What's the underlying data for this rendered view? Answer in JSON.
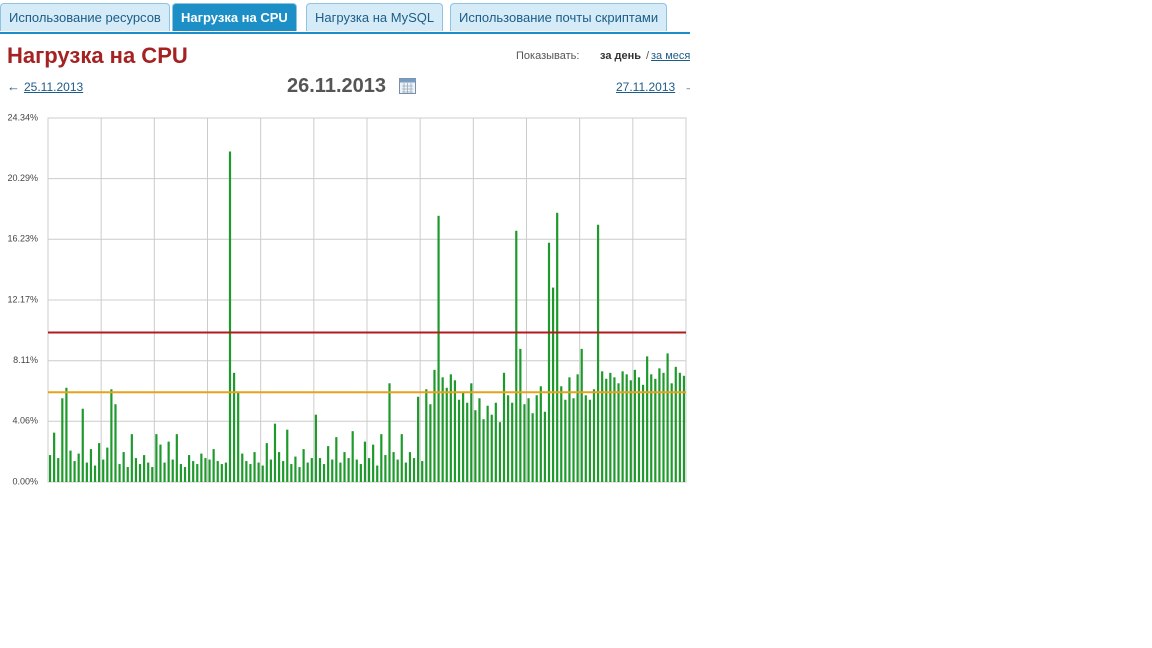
{
  "tabs": [
    "Использование ресурсов",
    "Нагрузка на CPU",
    "Нагрузка на MySQL",
    "Использование почты скриптами"
  ],
  "active_tab": 1,
  "header": {
    "title": "Нагрузка на CPU",
    "show_label": "Показывать:",
    "period_day": "за день",
    "separator": "/",
    "period_month": "за меся"
  },
  "nav": {
    "prev_arrow": "←",
    "prev_date": "25.11.2013",
    "current_date": "26.11.2013",
    "next_date": "27.11.2013",
    "next_arrow": "→"
  },
  "chart_data": {
    "type": "bar",
    "color": "#1e9a2c",
    "values": [
      1.8,
      3.3,
      1.6,
      5.6,
      6.3,
      2.1,
      1.4,
      1.9,
      4.9,
      1.3,
      2.2,
      1.1,
      2.6,
      1.5,
      2.3,
      6.2,
      5.2,
      1.2,
      2.0,
      1.0,
      3.2,
      1.6,
      1.2,
      1.8,
      1.3,
      1.0,
      3.2,
      2.5,
      1.3,
      2.7,
      1.5,
      3.2,
      1.2,
      1.0,
      1.8,
      1.4,
      1.2,
      1.9,
      1.6,
      1.5,
      2.2,
      1.4,
      1.2,
      1.3,
      22.1,
      7.3,
      6.0,
      1.9,
      1.4,
      1.2,
      2.0,
      1.3,
      1.1,
      2.6,
      1.5,
      3.9,
      2.0,
      1.4,
      3.5,
      1.2,
      1.7,
      1.0,
      2.2,
      1.3,
      1.6,
      4.5,
      1.6,
      1.2,
      2.4,
      1.5,
      3.0,
      1.3,
      2.0,
      1.6,
      3.4,
      1.5,
      1.2,
      2.7,
      1.6,
      2.5,
      1.1,
      3.2,
      1.8,
      6.6,
      2.0,
      1.5,
      3.2,
      1.3,
      2.0,
      1.6,
      5.7,
      1.4,
      6.2,
      5.2,
      7.5,
      17.8,
      7.0,
      6.3,
      7.2,
      6.8,
      5.5,
      6.0,
      5.3,
      6.6,
      4.8,
      5.6,
      4.2,
      5.1,
      4.5,
      5.3,
      4.0,
      7.3,
      5.8,
      5.3,
      16.8,
      8.9,
      5.2,
      5.6,
      4.6,
      5.8,
      6.4,
      4.7,
      16.0,
      13.0,
      18.0,
      6.4,
      5.5,
      7.0,
      5.6,
      7.2,
      8.9,
      5.8,
      5.5,
      6.2,
      17.2,
      7.4,
      6.9,
      7.3,
      7.0,
      6.6,
      7.4,
      7.2,
      6.8,
      7.5,
      7.0,
      6.5,
      8.4,
      7.2,
      6.9,
      7.6,
      7.3,
      8.6,
      6.6,
      7.7,
      7.3,
      7.1
    ],
    "ylim": [
      0,
      24.34
    ],
    "yticks": [
      {
        "value": 0,
        "label": "0.00%"
      },
      {
        "value": 4.06,
        "label": "4.06%"
      },
      {
        "value": 8.11,
        "label": "8.11%"
      },
      {
        "value": 12.17,
        "label": "12.17%"
      },
      {
        "value": 16.23,
        "label": "16.23%"
      },
      {
        "value": 20.29,
        "label": "20.29%"
      },
      {
        "value": 24.34,
        "label": "24.34%"
      }
    ],
    "grid": true,
    "reference_lines": [
      {
        "value": 10,
        "color": "#b01c1c"
      },
      {
        "value": 6,
        "color": "#e8a21a"
      }
    ]
  }
}
